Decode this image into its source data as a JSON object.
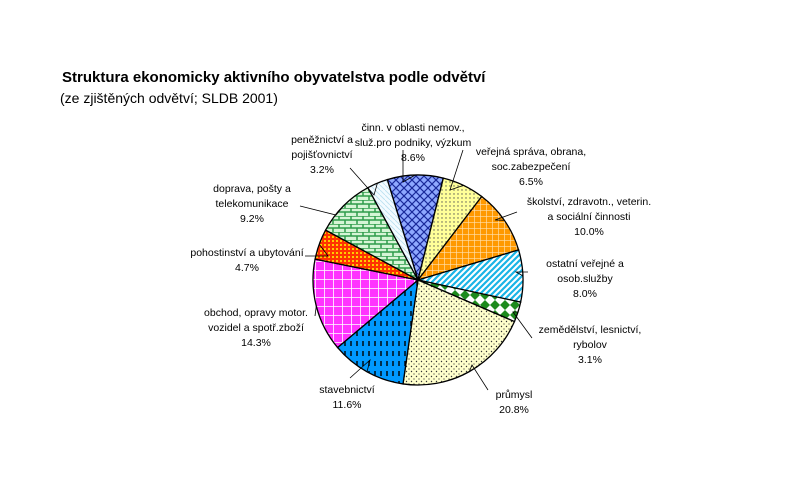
{
  "chart_data": {
    "type": "pie",
    "title": "Struktura ekonomicky aktivního obyvatelstva podle odvětví",
    "subtitle": " (ze zjištěných odvětví; SLDB 2001)",
    "slices": [
      {
        "label": [
          "činn. v oblasti nemov.,",
          "služ.pro podniky, výzkum"
        ],
        "value_label": "8.6%",
        "value": 8.6,
        "pattern": "crosshatch-blue"
      },
      {
        "label": [
          "veřejná správa, obrana,",
          "soc.zabezpečení"
        ],
        "value_label": "6.5%",
        "value": 6.5,
        "pattern": "dots-yellow"
      },
      {
        "label": [
          "školství, zdravotn., veterin.",
          "a sociální činnosti"
        ],
        "value_label": "10.0%",
        "value": 10.0,
        "pattern": "grid-orange"
      },
      {
        "label": [
          "ostatní veřejné a",
          "osob.služby"
        ],
        "value_label": "8.0%",
        "value": 8.0,
        "pattern": "diagonal-cyan"
      },
      {
        "label": [
          "zemědělství, lesnictví,",
          "rybolov"
        ],
        "value_label": "3.1%",
        "value": 3.1,
        "pattern": "diamond-green"
      },
      {
        "label": [
          "průmysl"
        ],
        "value_label": "20.8%",
        "value": 20.8,
        "pattern": "dots-cream"
      },
      {
        "label": [
          "stavebnictví"
        ],
        "value_label": "11.6%",
        "value": 11.6,
        "pattern": "dashes-blue"
      },
      {
        "label": [
          "obchod, opravy motor.",
          "vozidel a spotř.zboží"
        ],
        "value_label": "14.3%",
        "value": 14.3,
        "pattern": "grid-magenta"
      },
      {
        "label": [
          "pohostinství a ubytování"
        ],
        "value_label": "4.7%",
        "value": 4.7,
        "pattern": "dots-red-orange"
      },
      {
        "label": [
          "doprava, pošty a",
          "telekomunikace"
        ],
        "value_label": "9.2%",
        "value": 9.2,
        "pattern": "brick-green"
      },
      {
        "label": [
          "peněžnictví a",
          "pojišťovnictví"
        ],
        "value_label": "3.2%",
        "value": 3.2,
        "pattern": "diagonal-lightblue"
      }
    ]
  }
}
